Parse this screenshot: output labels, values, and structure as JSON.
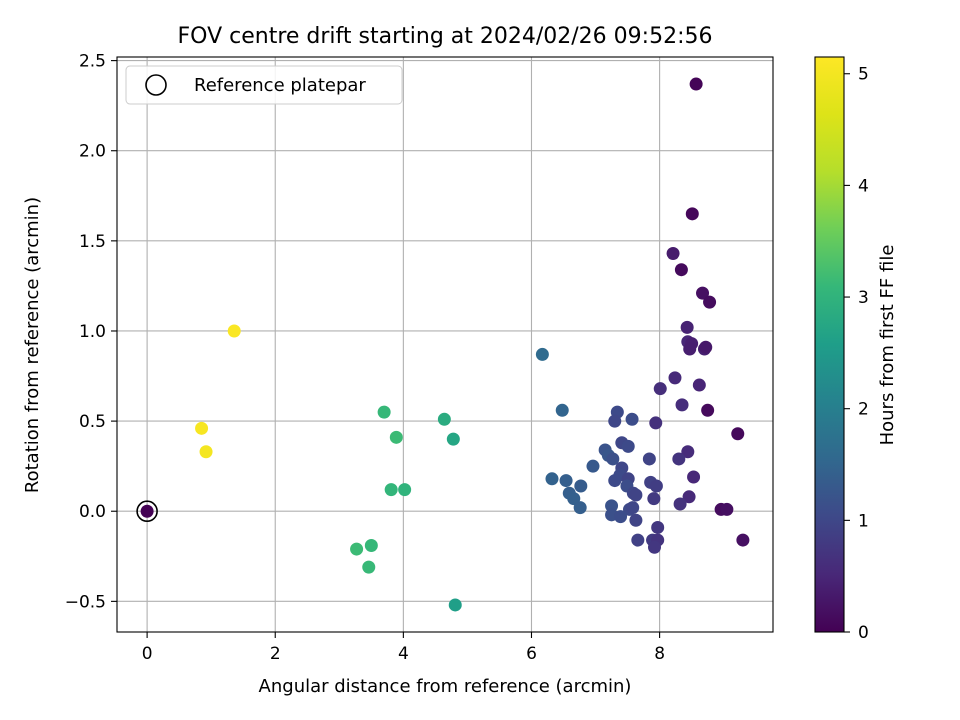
{
  "chart_data": {
    "type": "scatter",
    "title": "FOV centre drift starting at 2024/02/26 09:52:56",
    "xlabel": "Angular distance from reference (arcmin)",
    "ylabel": "Rotation from reference (arcmin)",
    "xlim": [
      -0.47,
      9.77
    ],
    "ylim": [
      -0.67,
      2.52
    ],
    "x_ticks": [
      0,
      2,
      4,
      6,
      8
    ],
    "y_ticks": [
      -0.5,
      0.0,
      0.5,
      1.0,
      1.5,
      2.0,
      2.5
    ],
    "y_tick_labels": [
      "−0.5",
      "0.0",
      "0.5",
      "1.0",
      "1.5",
      "2.0",
      "2.5"
    ],
    "grid": true,
    "legend": {
      "position": "top-left",
      "entries": [
        {
          "label": "Reference platepar",
          "marker": "open-circle"
        }
      ]
    },
    "reference_point": {
      "x": 0,
      "y": 0,
      "hours": 0
    },
    "colorbar": {
      "label": "Hours from first FF file",
      "colormap": "viridis",
      "range": [
        0,
        5.15
      ],
      "ticks": [
        0,
        1,
        2,
        3,
        4,
        5
      ]
    },
    "points": [
      {
        "x": 8.57,
        "y": 2.37,
        "hours": 0.05
      },
      {
        "x": 8.51,
        "y": 1.65,
        "hours": 0.08
      },
      {
        "x": 8.21,
        "y": 1.43,
        "hours": 0.35
      },
      {
        "x": 8.34,
        "y": 1.34,
        "hours": 0.12
      },
      {
        "x": 8.67,
        "y": 1.21,
        "hours": 0.2
      },
      {
        "x": 8.78,
        "y": 1.16,
        "hours": 0.15
      },
      {
        "x": 8.43,
        "y": 1.02,
        "hours": 0.45
      },
      {
        "x": 8.44,
        "y": 0.94,
        "hours": 0.5
      },
      {
        "x": 8.5,
        "y": 0.93,
        "hours": 0.4
      },
      {
        "x": 8.47,
        "y": 0.9,
        "hours": 0.38
      },
      {
        "x": 8.7,
        "y": 0.9,
        "hours": 0.42
      },
      {
        "x": 8.72,
        "y": 0.91,
        "hours": 0.3
      },
      {
        "x": 8.01,
        "y": 0.68,
        "hours": 0.62
      },
      {
        "x": 8.24,
        "y": 0.74,
        "hours": 0.55
      },
      {
        "x": 8.62,
        "y": 0.7,
        "hours": 0.48
      },
      {
        "x": 8.35,
        "y": 0.59,
        "hours": 0.6
      },
      {
        "x": 8.75,
        "y": 0.56,
        "hours": 0.12
      },
      {
        "x": 7.94,
        "y": 0.49,
        "hours": 0.65
      },
      {
        "x": 9.22,
        "y": 0.43,
        "hours": 0.1
      },
      {
        "x": 8.44,
        "y": 0.33,
        "hours": 0.58
      },
      {
        "x": 8.3,
        "y": 0.29,
        "hours": 0.7
      },
      {
        "x": 8.53,
        "y": 0.19,
        "hours": 0.52
      },
      {
        "x": 8.46,
        "y": 0.08,
        "hours": 0.55
      },
      {
        "x": 8.32,
        "y": 0.04,
        "hours": 0.68
      },
      {
        "x": 8.96,
        "y": 0.01,
        "hours": 0.15
      },
      {
        "x": 9.05,
        "y": 0.01,
        "hours": 0.18
      },
      {
        "x": 9.3,
        "y": -0.16,
        "hours": 0.2
      },
      {
        "x": 6.17,
        "y": 0.87,
        "hours": 1.6
      },
      {
        "x": 6.48,
        "y": 0.56,
        "hours": 1.5
      },
      {
        "x": 7.34,
        "y": 0.55,
        "hours": 1.05
      },
      {
        "x": 7.3,
        "y": 0.5,
        "hours": 1.0
      },
      {
        "x": 7.57,
        "y": 0.51,
        "hours": 1.1
      },
      {
        "x": 7.41,
        "y": 0.38,
        "hours": 1.0
      },
      {
        "x": 7.51,
        "y": 0.36,
        "hours": 1.05
      },
      {
        "x": 7.15,
        "y": 0.34,
        "hours": 1.2
      },
      {
        "x": 7.2,
        "y": 0.31,
        "hours": 1.25
      },
      {
        "x": 7.27,
        "y": 0.29,
        "hours": 1.15
      },
      {
        "x": 7.84,
        "y": 0.29,
        "hours": 0.95
      },
      {
        "x": 6.96,
        "y": 0.25,
        "hours": 1.3
      },
      {
        "x": 7.41,
        "y": 0.24,
        "hours": 1.0
      },
      {
        "x": 7.38,
        "y": 0.2,
        "hours": 1.05
      },
      {
        "x": 6.32,
        "y": 0.18,
        "hours": 1.45
      },
      {
        "x": 6.54,
        "y": 0.17,
        "hours": 1.4
      },
      {
        "x": 7.3,
        "y": 0.17,
        "hours": 1.05
      },
      {
        "x": 7.51,
        "y": 0.18,
        "hours": 0.95
      },
      {
        "x": 6.77,
        "y": 0.14,
        "hours": 1.35
      },
      {
        "x": 7.49,
        "y": 0.14,
        "hours": 1.1
      },
      {
        "x": 7.86,
        "y": 0.16,
        "hours": 0.9
      },
      {
        "x": 7.95,
        "y": 0.14,
        "hours": 0.85
      },
      {
        "x": 7.59,
        "y": 0.1,
        "hours": 1.0
      },
      {
        "x": 7.63,
        "y": 0.09,
        "hours": 0.95
      },
      {
        "x": 6.59,
        "y": 0.1,
        "hours": 1.4
      },
      {
        "x": 6.66,
        "y": 0.07,
        "hours": 1.42
      },
      {
        "x": 7.91,
        "y": 0.07,
        "hours": 0.8
      },
      {
        "x": 6.76,
        "y": 0.02,
        "hours": 1.4
      },
      {
        "x": 7.25,
        "y": 0.03,
        "hours": 1.2
      },
      {
        "x": 7.53,
        "y": 0.01,
        "hours": 1.05
      },
      {
        "x": 7.58,
        "y": 0.02,
        "hours": 1.0
      },
      {
        "x": 7.25,
        "y": -0.02,
        "hours": 1.15
      },
      {
        "x": 7.39,
        "y": -0.03,
        "hours": 1.1
      },
      {
        "x": 7.63,
        "y": -0.05,
        "hours": 0.95
      },
      {
        "x": 7.97,
        "y": -0.09,
        "hours": 0.75
      },
      {
        "x": 7.66,
        "y": -0.16,
        "hours": 0.9
      },
      {
        "x": 7.89,
        "y": -0.16,
        "hours": 0.8
      },
      {
        "x": 7.97,
        "y": -0.16,
        "hours": 0.7
      },
      {
        "x": 7.92,
        "y": -0.2,
        "hours": 0.75
      },
      {
        "x": 3.7,
        "y": 0.55,
        "hours": 3.1
      },
      {
        "x": 3.89,
        "y": 0.41,
        "hours": 3.15
      },
      {
        "x": 4.64,
        "y": 0.51,
        "hours": 2.85
      },
      {
        "x": 4.78,
        "y": 0.4,
        "hours": 2.75
      },
      {
        "x": 3.81,
        "y": 0.12,
        "hours": 3.05
      },
      {
        "x": 4.02,
        "y": 0.12,
        "hours": 3.0
      },
      {
        "x": 3.27,
        "y": -0.21,
        "hours": 3.15
      },
      {
        "x": 3.5,
        "y": -0.19,
        "hours": 3.1
      },
      {
        "x": 3.46,
        "y": -0.31,
        "hours": 3.12
      },
      {
        "x": 4.81,
        "y": -0.52,
        "hours": 2.6
      },
      {
        "x": 1.36,
        "y": 1.0,
        "hours": 5.1
      },
      {
        "x": 0.85,
        "y": 0.46,
        "hours": 5.05
      },
      {
        "x": 0.92,
        "y": 0.33,
        "hours": 5.0
      }
    ]
  }
}
